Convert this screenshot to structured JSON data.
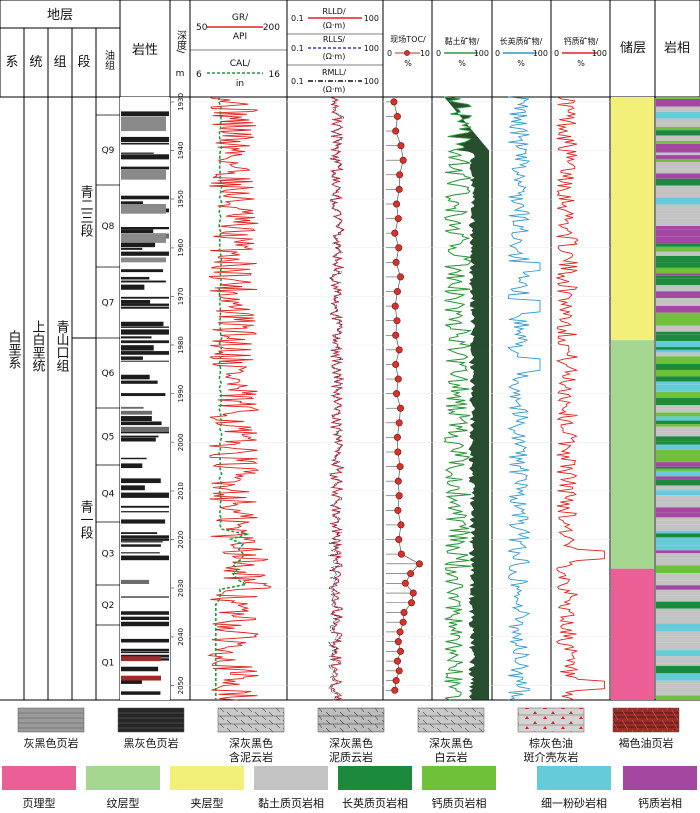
{
  "chart_data": {
    "type": "well-log",
    "header": {
      "strat": "地层",
      "xi": "系",
      "tong": "统",
      "zu": "组",
      "duan": "段",
      "youzu": "油组",
      "lithology": "岩性",
      "depth": "深度/",
      "depth_unit": "m",
      "toc_label": "现场TOC/",
      "toc_unit": "%",
      "clay_label": "黏土矿物/",
      "felsic_label": "长英质矿物/",
      "calc_label": "钙质矿物/",
      "pct": "%",
      "reservoir": "储层",
      "facies": "岩相"
    },
    "strata": {
      "system": "白垩系",
      "series": "上白垩统",
      "formation": "青山口组",
      "member_upper": "青二三段",
      "member_lower": "青一段"
    },
    "oil_groups": [
      "Q9",
      "Q8",
      "Q7",
      "Q6",
      "Q5",
      "Q4",
      "Q3",
      "Q2",
      "Q1"
    ],
    "depth_ticks": [
      "1930",
      "1940",
      "1950",
      "1960",
      "1970",
      "1980",
      "1990",
      "2000",
      "2010",
      "2020",
      "2030",
      "2040",
      "2050"
    ],
    "depth_range": [
      1929,
      2053
    ],
    "curves": {
      "gr": {
        "name": "GR/",
        "unit": "API",
        "min": "50",
        "max": "200",
        "color": "#e2201c"
      },
      "cal": {
        "name": "CAL/",
        "unit": "in",
        "min": "6",
        "max": "16",
        "color": "#1f9a3a"
      },
      "rlld": {
        "name": "RLLD/",
        "unit": "(Ω·m)",
        "min": "0.1",
        "max": "100",
        "color": "#e2201c"
      },
      "rlls": {
        "name": "RLLS/",
        "unit": "(Ω·m)",
        "min": "0.1",
        "max": "100",
        "color": "#2a3fbf"
      },
      "rmll": {
        "name": "RMLL/",
        "unit": "(Ω·m)",
        "min": "0.1",
        "max": "100",
        "color": "#111111"
      },
      "toc": {
        "min": "0",
        "max": "10"
      },
      "clay": {
        "min": "0",
        "max": "100",
        "color": "#2f9a3e"
      },
      "felsic": {
        "min": "0",
        "max": "100",
        "color": "#2f9ad0"
      },
      "calc": {
        "min": "0",
        "max": "100",
        "color": "#e2201c"
      }
    },
    "toc_points": [
      {
        "depth": 1930,
        "value": 1.8
      },
      {
        "depth": 1933,
        "value": 2.6
      },
      {
        "depth": 1936,
        "value": 2.2
      },
      {
        "depth": 1939,
        "value": 3.4
      },
      {
        "depth": 1942,
        "value": 3.9
      },
      {
        "depth": 1945,
        "value": 3.1
      },
      {
        "depth": 1948,
        "value": 3.0
      },
      {
        "depth": 1951,
        "value": 2.4
      },
      {
        "depth": 1954,
        "value": 2.8
      },
      {
        "depth": 1957,
        "value": 2.0
      },
      {
        "depth": 1960,
        "value": 2.9
      },
      {
        "depth": 1963,
        "value": 2.3
      },
      {
        "depth": 1966,
        "value": 3.3
      },
      {
        "depth": 1969,
        "value": 2.6
      },
      {
        "depth": 1972,
        "value": 2.1
      },
      {
        "depth": 1975,
        "value": 2.5
      },
      {
        "depth": 1978,
        "value": 2.2
      },
      {
        "depth": 1981,
        "value": 3.0
      },
      {
        "depth": 1984,
        "value": 2.2
      },
      {
        "depth": 1987,
        "value": 2.8
      },
      {
        "depth": 1990,
        "value": 2.4
      },
      {
        "depth": 1993,
        "value": 3.3
      },
      {
        "depth": 1996,
        "value": 3.0
      },
      {
        "depth": 1999,
        "value": 2.6
      },
      {
        "depth": 2002,
        "value": 2.7
      },
      {
        "depth": 2005,
        "value": 3.2
      },
      {
        "depth": 2008,
        "value": 2.8
      },
      {
        "depth": 2011,
        "value": 3.0
      },
      {
        "depth": 2014,
        "value": 2.7
      },
      {
        "depth": 2017,
        "value": 3.4
      },
      {
        "depth": 2020,
        "value": 2.9
      },
      {
        "depth": 2023,
        "value": 3.5
      },
      {
        "depth": 2025,
        "value": 7.6
      },
      {
        "depth": 2027,
        "value": 5.6
      },
      {
        "depth": 2029,
        "value": 4.4
      },
      {
        "depth": 2031,
        "value": 6.2
      },
      {
        "depth": 2033,
        "value": 5.8
      },
      {
        "depth": 2035,
        "value": 4.1
      },
      {
        "depth": 2037,
        "value": 3.9
      },
      {
        "depth": 2039,
        "value": 3.2
      },
      {
        "depth": 2041,
        "value": 2.8
      },
      {
        "depth": 2043,
        "value": 3.3
      },
      {
        "depth": 2045,
        "value": 2.6
      },
      {
        "depth": 2047,
        "value": 3.0
      },
      {
        "depth": 2049,
        "value": 2.3
      },
      {
        "depth": 2051,
        "value": 2.0
      }
    ],
    "reservoir_zones": [
      {
        "type": "夹层型",
        "top": 1929,
        "bottom": 1979,
        "color": "#f3f07a"
      },
      {
        "type": "纹层型",
        "top": 1979,
        "bottom": 2026,
        "color": "#a6d790"
      },
      {
        "type": "页理型",
        "top": 2026,
        "bottom": 2053,
        "color": "#ec5f96"
      }
    ],
    "lith_legend": [
      {
        "label": "灰黑色页岩",
        "pattern": "grey-shale"
      },
      {
        "label": "黑灰色页岩",
        "pattern": "black-shale"
      },
      {
        "label": "深灰黑色含泥云岩",
        "pattern": "dolomite-light"
      },
      {
        "label": "深灰黑色泥质云岩",
        "pattern": "dolomite-dark"
      },
      {
        "label": "深灰黑色白云岩",
        "pattern": "dolomite"
      },
      {
        "label": "棕灰色油斑介壳灰岩",
        "pattern": "shell-limestone"
      },
      {
        "label": "褐色油页岩",
        "pattern": "oil-shale"
      }
    ],
    "facies_legend": [
      {
        "label": "页理型",
        "color": "#ec5f96"
      },
      {
        "label": "纹层型",
        "color": "#a6d790"
      },
      {
        "label": "夹层型",
        "color": "#f3f07a"
      },
      {
        "label": "黏土质页岩相",
        "color": "#c3c3c3"
      },
      {
        "label": "长英质页岩相",
        "color": "#1b8a3c"
      },
      {
        "label": "钙质页岩相",
        "color": "#6fc13a"
      },
      {
        "label": "细一粉砂岩相",
        "color": "#66cbd8"
      },
      {
        "label": "钙质岩相",
        "color": "#a347a0"
      }
    ]
  }
}
